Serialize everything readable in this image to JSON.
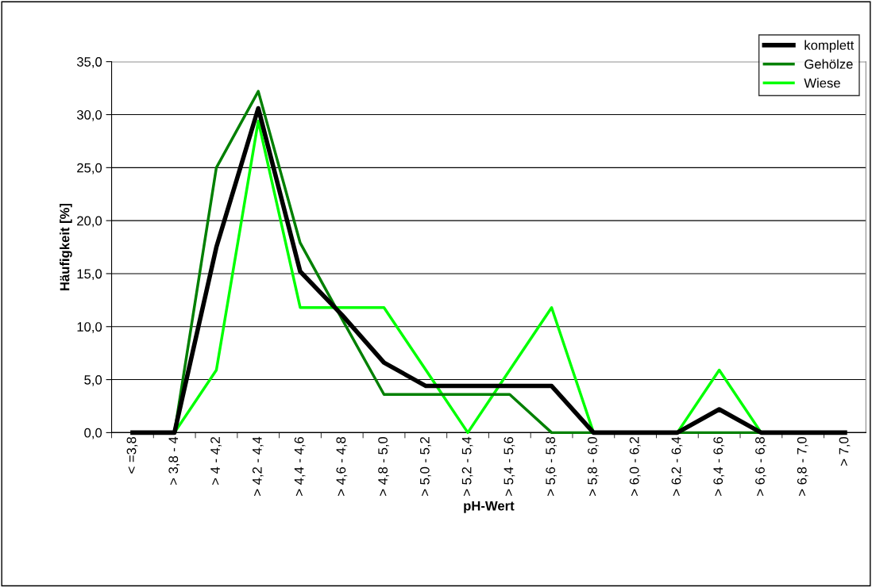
{
  "chart_data": {
    "type": "line",
    "xlabel": "pH-Wert",
    "ylabel": "Häufigkeit [%]",
    "categories": [
      "< =3,8",
      "> 3,8 - 4",
      "> 4 - 4,2",
      "> 4,2 - 4,4",
      "> 4,4 - 4,6",
      "> 4,6 - 4,8",
      "> 4,8 - 5,0",
      "> 5,0 - 5,2",
      "> 5,2 - 5,4",
      "> 5,4 - 5,6",
      "> 5,6 - 5,8",
      "> 5,8 - 6,0",
      "> 6,0 - 6,2",
      "> 6,2 - 6,4",
      "> 6,4 - 6,6",
      "> 6,6 - 6,8",
      "> 6,8 - 7,0",
      "> 7,0"
    ],
    "series": [
      {
        "name": "komplett",
        "color": "#000000",
        "values": [
          0,
          0,
          17.5,
          30.6,
          15.2,
          11.1,
          6.6,
          4.4,
          4.4,
          4.4,
          4.4,
          0,
          0,
          0,
          2.2,
          0,
          0,
          0
        ]
      },
      {
        "name": "Gehölze",
        "color": "#008000",
        "values": [
          0,
          0,
          25.0,
          32.2,
          17.9,
          10.7,
          3.6,
          3.6,
          3.6,
          3.6,
          0,
          0,
          0,
          0,
          0,
          0,
          0,
          0
        ]
      },
      {
        "name": "Wiese",
        "color": "#00ff00",
        "values": [
          0,
          0,
          5.9,
          29.4,
          11.8,
          11.8,
          11.8,
          5.9,
          0,
          5.9,
          11.8,
          0,
          0,
          0,
          5.9,
          0,
          0,
          0
        ]
      }
    ],
    "ylim": [
      0,
      35
    ],
    "yticks": [
      {
        "value": 0,
        "label": "0,0"
      },
      {
        "value": 5,
        "label": "5,0"
      },
      {
        "value": 10,
        "label": "10,0"
      },
      {
        "value": 15,
        "label": "15,0"
      },
      {
        "value": 20,
        "label": "20,0"
      },
      {
        "value": 25,
        "label": "25,0"
      },
      {
        "value": 30,
        "label": "30,0"
      },
      {
        "value": 35,
        "label": "35,0"
      }
    ],
    "grid": "y",
    "legend": "top right",
    "marker": "none",
    "line_style": "solid"
  }
}
